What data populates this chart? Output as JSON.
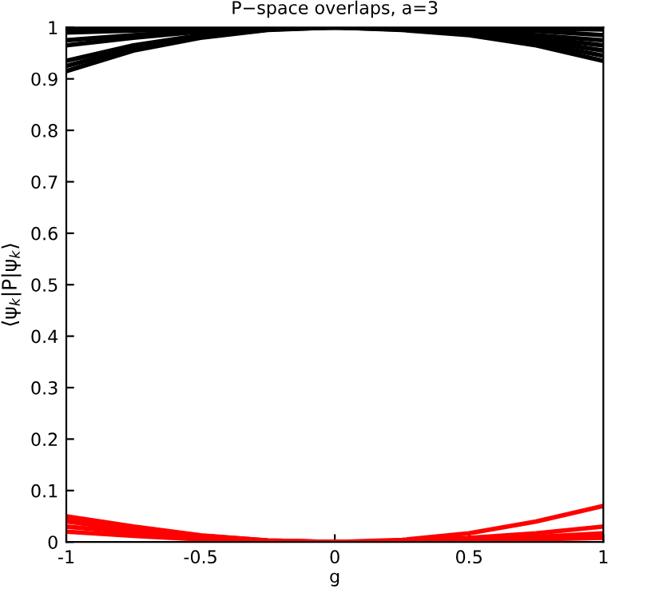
{
  "chart_data": {
    "type": "line",
    "title": "P−space overlaps, a=3",
    "xlabel": "g",
    "ylabel": "⟨ψ$_{k}$|P|ψ$_{k}$⟩",
    "x": [
      -1,
      -0.75,
      -0.5,
      -0.25,
      0,
      0.25,
      0.5,
      0.75,
      1
    ],
    "series": [
      {
        "color": "#000000",
        "values": [
          0.915,
          0.955,
          0.98,
          0.995,
          1,
          0.995,
          0.985,
          0.965,
          0.935
        ]
      },
      {
        "color": "#000000",
        "values": [
          0.925,
          0.96,
          0.982,
          0.996,
          1,
          0.996,
          0.987,
          0.97,
          0.945
        ]
      },
      {
        "color": "#000000",
        "values": [
          0.935,
          0.965,
          0.985,
          0.997,
          1,
          0.997,
          0.99,
          0.975,
          0.955
        ]
      },
      {
        "color": "#000000",
        "values": [
          0.965,
          0.98,
          0.992,
          0.998,
          1,
          0.998,
          0.993,
          0.98,
          0.965
        ]
      },
      {
        "color": "#000000",
        "values": [
          0.975,
          0.985,
          0.994,
          0.999,
          1,
          0.999,
          0.995,
          0.985,
          0.975
        ]
      },
      {
        "color": "#000000",
        "values": [
          0.99,
          0.994,
          0.997,
          0.999,
          1,
          0.999,
          0.997,
          0.993,
          0.985
        ]
      },
      {
        "color": "#000000",
        "values": [
          0.998,
          0.999,
          1,
          1,
          1,
          1,
          0.999,
          0.998,
          0.996
        ]
      },
      {
        "color": "#ff0000",
        "values": [
          0.05,
          0.03,
          0.013,
          0.003,
          0,
          0.004,
          0.017,
          0.04,
          0.07
        ]
      },
      {
        "color": "#ff0000",
        "values": [
          0.045,
          0.027,
          0.012,
          0.003,
          0,
          0.002,
          0.008,
          0.017,
          0.03
        ]
      },
      {
        "color": "#ff0000",
        "values": [
          0.04,
          0.023,
          0.01,
          0.002,
          0,
          0.001,
          0.005,
          0.01,
          0.017
        ]
      },
      {
        "color": "#ff0000",
        "values": [
          0.03,
          0.018,
          0.008,
          0.002,
          0,
          0.001,
          0.004,
          0.008,
          0.012
        ]
      },
      {
        "color": "#ff0000",
        "values": [
          0.02,
          0.012,
          0.005,
          0.001,
          0,
          0.001,
          0.003,
          0.005,
          0.008
        ]
      }
    ],
    "xlim": [
      -1,
      1
    ],
    "ylim": [
      0,
      1
    ],
    "xticks": [
      -1,
      -0.5,
      0,
      0.5,
      1
    ],
    "yticks": [
      0,
      0.1,
      0.2,
      0.3,
      0.4,
      0.5,
      0.6,
      0.7,
      0.8,
      0.9,
      1
    ],
    "marker": "none",
    "line_style": "solid",
    "grid": false
  }
}
